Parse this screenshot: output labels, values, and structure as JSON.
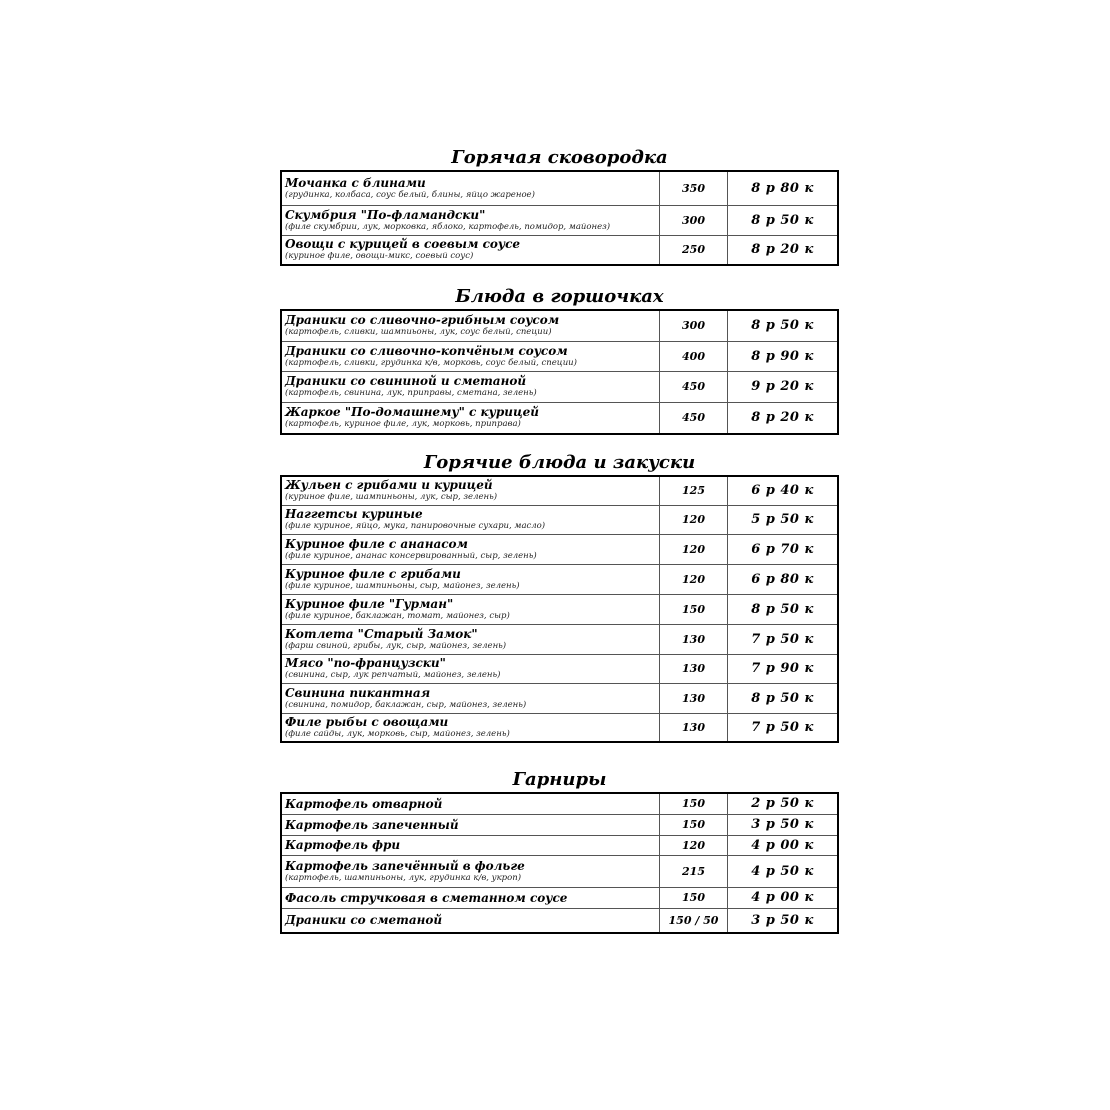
{
  "sections": [
    {
      "title": "Горячая сковородка",
      "items": [
        {
          "name": "Мочанка с блинами",
          "desc": "(грудинка, колбаса, соус белый, блины, яйцо жареное)",
          "weight": "350",
          "price": "8 р 80 к"
        },
        {
          "name": "Скумбрия \"По-фламандски\"",
          "desc": "(филе скумбрии, лук, морковка, яблоко, картофель, помидор, майонез)",
          "weight": "300",
          "price": "8 р 50 к"
        },
        {
          "name": "Овощи с курицей в соевым соусе",
          "desc": "(куриное филе, овощи-микс, соевый соус)",
          "weight": "250",
          "price": "8 р 20 к"
        }
      ]
    },
    {
      "title": "Блюда в горшочках",
      "items": [
        {
          "name": "Драники со сливочно-грибным соусом",
          "desc": "(картофель, сливки, шампиьоны, лук, соус белый, специи)",
          "weight": "300",
          "price": "8 р 50 к"
        },
        {
          "name": "Драники со сливочно-копчёным соусом",
          "desc": "(картофель, сливки, грудинка к/в, морковь, соус белый, специи)",
          "weight": "400",
          "price": "8 р 90 к"
        },
        {
          "name": "Драники со свининой и сметаной",
          "desc": "(картофель, свинина, лук, приправы, сметана, зелень)",
          "weight": "450",
          "price": "9 р 20 к"
        },
        {
          "name": "Жаркое \"По-домашнему\" с курицей",
          "desc": "(картофель, куриное филе, лук, морковь, приправа)",
          "weight": "450",
          "price": "8 р 20 к"
        }
      ]
    },
    {
      "title": "Горячие блюда и закуски",
      "items": [
        {
          "name": "Жульен с грибами и курицей",
          "desc": "(куриное филе, шампиньоны, лук, сыр, зелень)",
          "weight": "125",
          "price": "6 р 40 к"
        },
        {
          "name": "Наггетсы куриные",
          "desc": "(филе куриное, яйцо, мука, панировочные сухари, масло)",
          "weight": "120",
          "price": "5 р 50 к"
        },
        {
          "name": "Куриное филе с ананасом",
          "desc": "(филе куриное, ананас консервированный, сыр, зелень)",
          "weight": "120",
          "price": "6 р 70 к"
        },
        {
          "name": "Куриное филе с грибами",
          "desc": "(филе куриное, шампиньоны, сыр, майонез, зелень)",
          "weight": "120",
          "price": "6 р 80 к"
        },
        {
          "name": "Куриное филе \"Гурман\"",
          "desc": "(филе куриное, баклажан, томат, майонез, сыр)",
          "weight": "150",
          "price": "8 р 50 к"
        },
        {
          "name": "Котлета \"Старый Замок\"",
          "desc": "(фарш свиной, грибы, лук, сыр, майонез, зелень)",
          "weight": "130",
          "price": "7 р 50 к"
        },
        {
          "name": "Мясо \"по-французски\"",
          "desc": "(свинина, сыр, лук репчатый, майонез, зелень)",
          "weight": "130",
          "price": "7 р 90 к"
        },
        {
          "name": "Свинина пикантная",
          "desc": "(свинина, помидор, баклажан, сыр, майонез, зелень)",
          "weight": "130",
          "price": "8 р 50 к"
        },
        {
          "name": "Филе рыбы с овощами",
          "desc": "(филе сайды, лук, морковь, сыр, майонез, зелень)",
          "weight": "130",
          "price": "7 р 50 к"
        }
      ]
    },
    {
      "title": "Гарниры",
      "items": [
        {
          "name": "Картофель отварной",
          "weight": "150",
          "price": "2 р 50 к"
        },
        {
          "name": "Картофель запеченный",
          "weight": "150",
          "price": "3 р 50 к"
        },
        {
          "name": "Картофель фри",
          "weight": "120",
          "price": "4 р 00 к"
        },
        {
          "name": "Картофель запечённый в фольге",
          "desc": "(картофель, шампиньоны, лук, грудинка к/в, укроп)",
          "weight": "215",
          "price": "4 р 50 к"
        },
        {
          "name": "Фасоль стручковая в сметанном соусе",
          "weight": "150",
          "price": "4 р 00 к"
        },
        {
          "name": "Драники со сметаной",
          "weight": "150 / 50",
          "price": "3 р 50 к"
        }
      ]
    }
  ]
}
